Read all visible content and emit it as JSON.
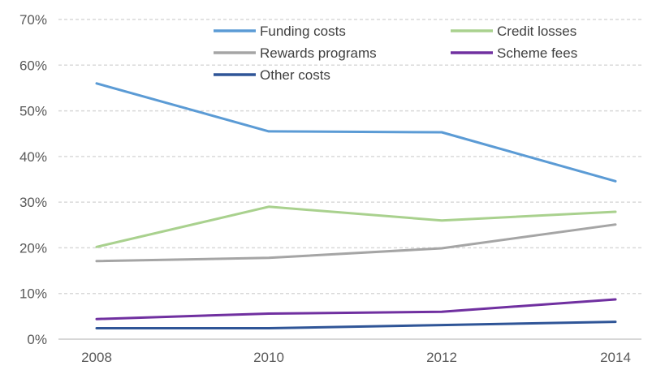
{
  "chart_data": {
    "type": "line",
    "title": "",
    "xlabel": "",
    "ylabel": "",
    "x": [
      "2008",
      "2010",
      "2012",
      "2014"
    ],
    "ylim": [
      0,
      70
    ],
    "yticks": [
      "0%",
      "10%",
      "20%",
      "30%",
      "40%",
      "50%",
      "60%",
      "70%"
    ],
    "y_unit": "%",
    "grid": true,
    "legend_position": "top",
    "series": [
      {
        "name": "Funding costs",
        "color": "#5b9bd5",
        "values": [
          56,
          45.5,
          45.3,
          34.6
        ]
      },
      {
        "name": "Credit losses",
        "color": "#a9d18e",
        "values": [
          20.2,
          29.0,
          26.0,
          27.9
        ]
      },
      {
        "name": "Rewards programs",
        "color": "#a5a5a5",
        "values": [
          17.1,
          17.8,
          19.9,
          25.1
        ]
      },
      {
        "name": "Scheme fees",
        "color": "#7030a0",
        "values": [
          4.4,
          5.6,
          6.0,
          8.7
        ]
      },
      {
        "name": "Other costs",
        "color": "#2f5597",
        "values": [
          2.4,
          2.4,
          3.1,
          3.8
        ]
      }
    ]
  }
}
